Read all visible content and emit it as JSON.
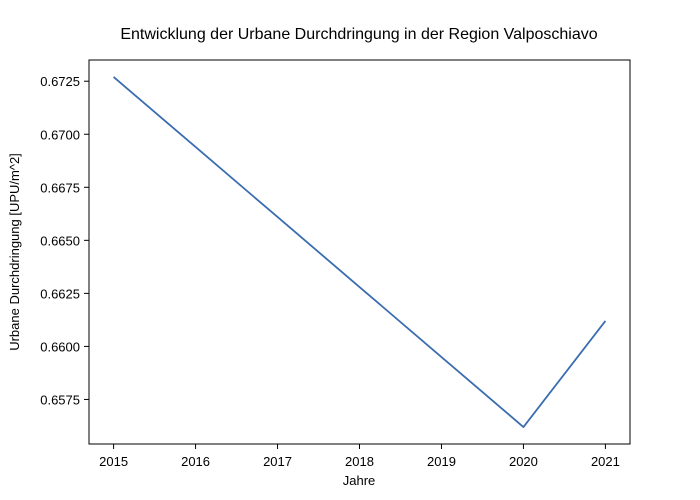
{
  "chart_data": {
    "type": "line",
    "title": "Entwicklung der Urbane Durchdringung in der Region Valposchiavo",
    "xlabel": "Jahre",
    "ylabel": "Urbane Durchdringung [UPU/m^2]",
    "x": [
      2015,
      2016,
      2017,
      2018,
      2019,
      2020,
      2021
    ],
    "series": [
      {
        "values": [
          0.6727,
          0.6694,
          0.6661,
          0.6628,
          0.6595,
          0.6562,
          0.6612
        ]
      }
    ],
    "xlim": [
      2014.7,
      2021.3
    ],
    "ylim": [
      0.6554,
      0.6735
    ],
    "xticks": [
      2015,
      2016,
      2017,
      2018,
      2019,
      2020,
      2021
    ],
    "yticks": [
      "0.6575",
      "0.6600",
      "0.6625",
      "0.6650",
      "0.6675",
      "0.6700",
      "0.6725"
    ],
    "grid": false,
    "line_color": "#3a6db0"
  }
}
